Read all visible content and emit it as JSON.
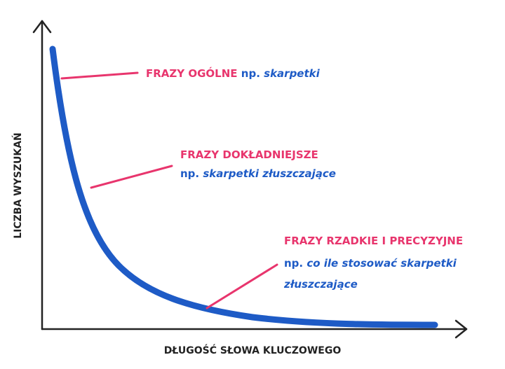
{
  "axes": {
    "x_label": "DŁUGOŚĆ SŁOWA KLUCZOWEGO",
    "y_label": "LICZBA WYSZUKAŃ"
  },
  "annotations": [
    {
      "title": "FRAZY OGÓLNE",
      "prefix": "np.",
      "example_lines": [
        "skarpetki"
      ]
    },
    {
      "title": "FRAZY DOKŁADNIEJSZE",
      "prefix": "np.",
      "example_lines": [
        "skarpetki złuszczające"
      ]
    },
    {
      "title": "FRAZY RZADKIE I PRECYZYJNE",
      "prefix": "np.",
      "example_lines": [
        "co ile stosować skarpetki",
        "złuszczające"
      ]
    }
  ]
}
